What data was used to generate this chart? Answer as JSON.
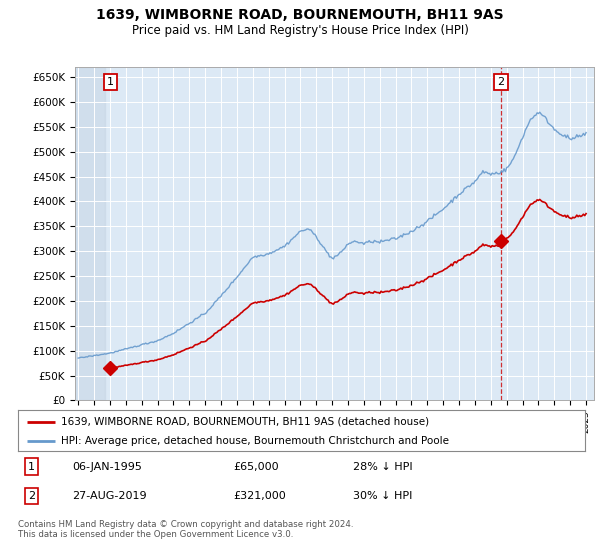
{
  "title": "1639, WIMBORNE ROAD, BOURNEMOUTH, BH11 9AS",
  "subtitle": "Price paid vs. HM Land Registry's House Price Index (HPI)",
  "ylabel_ticks": [
    "£0",
    "£50K",
    "£100K",
    "£150K",
    "£200K",
    "£250K",
    "£300K",
    "£350K",
    "£400K",
    "£450K",
    "£500K",
    "£550K",
    "£600K",
    "£650K"
  ],
  "ytick_values": [
    0,
    50000,
    100000,
    150000,
    200000,
    250000,
    300000,
    350000,
    400000,
    450000,
    500000,
    550000,
    600000,
    650000
  ],
  "ylim": [
    0,
    670000
  ],
  "xlim_start": 1992.8,
  "xlim_end": 2025.5,
  "sale1_x": 1995.02,
  "sale1_y": 65000,
  "sale2_x": 2019.65,
  "sale2_y": 321000,
  "price_line_color": "#cc0000",
  "hpi_line_color": "#6699cc",
  "annotation_box_color": "#cc0000",
  "background_color": "#dce9f5",
  "hatching_color": "#c0cfdf",
  "grid_color": "#b8cfe0",
  "legend_line1": "1639, WIMBORNE ROAD, BOURNEMOUTH, BH11 9AS (detached house)",
  "legend_line2": "HPI: Average price, detached house, Bournemouth Christchurch and Poole",
  "note1_date": "06-JAN-1995",
  "note1_price": "£65,000",
  "note1_hpi": "28% ↓ HPI",
  "note2_date": "27-AUG-2019",
  "note2_price": "£321,000",
  "note2_hpi": "30% ↓ HPI",
  "footer": "Contains HM Land Registry data © Crown copyright and database right 2024.\nThis data is licensed under the Open Government Licence v3.0.",
  "xtick_years": [
    1993,
    1994,
    1995,
    1996,
    1997,
    1998,
    1999,
    2000,
    2001,
    2002,
    2003,
    2004,
    2005,
    2006,
    2007,
    2008,
    2009,
    2010,
    2011,
    2012,
    2013,
    2014,
    2015,
    2016,
    2017,
    2018,
    2019,
    2020,
    2021,
    2022,
    2023,
    2024,
    2025
  ]
}
